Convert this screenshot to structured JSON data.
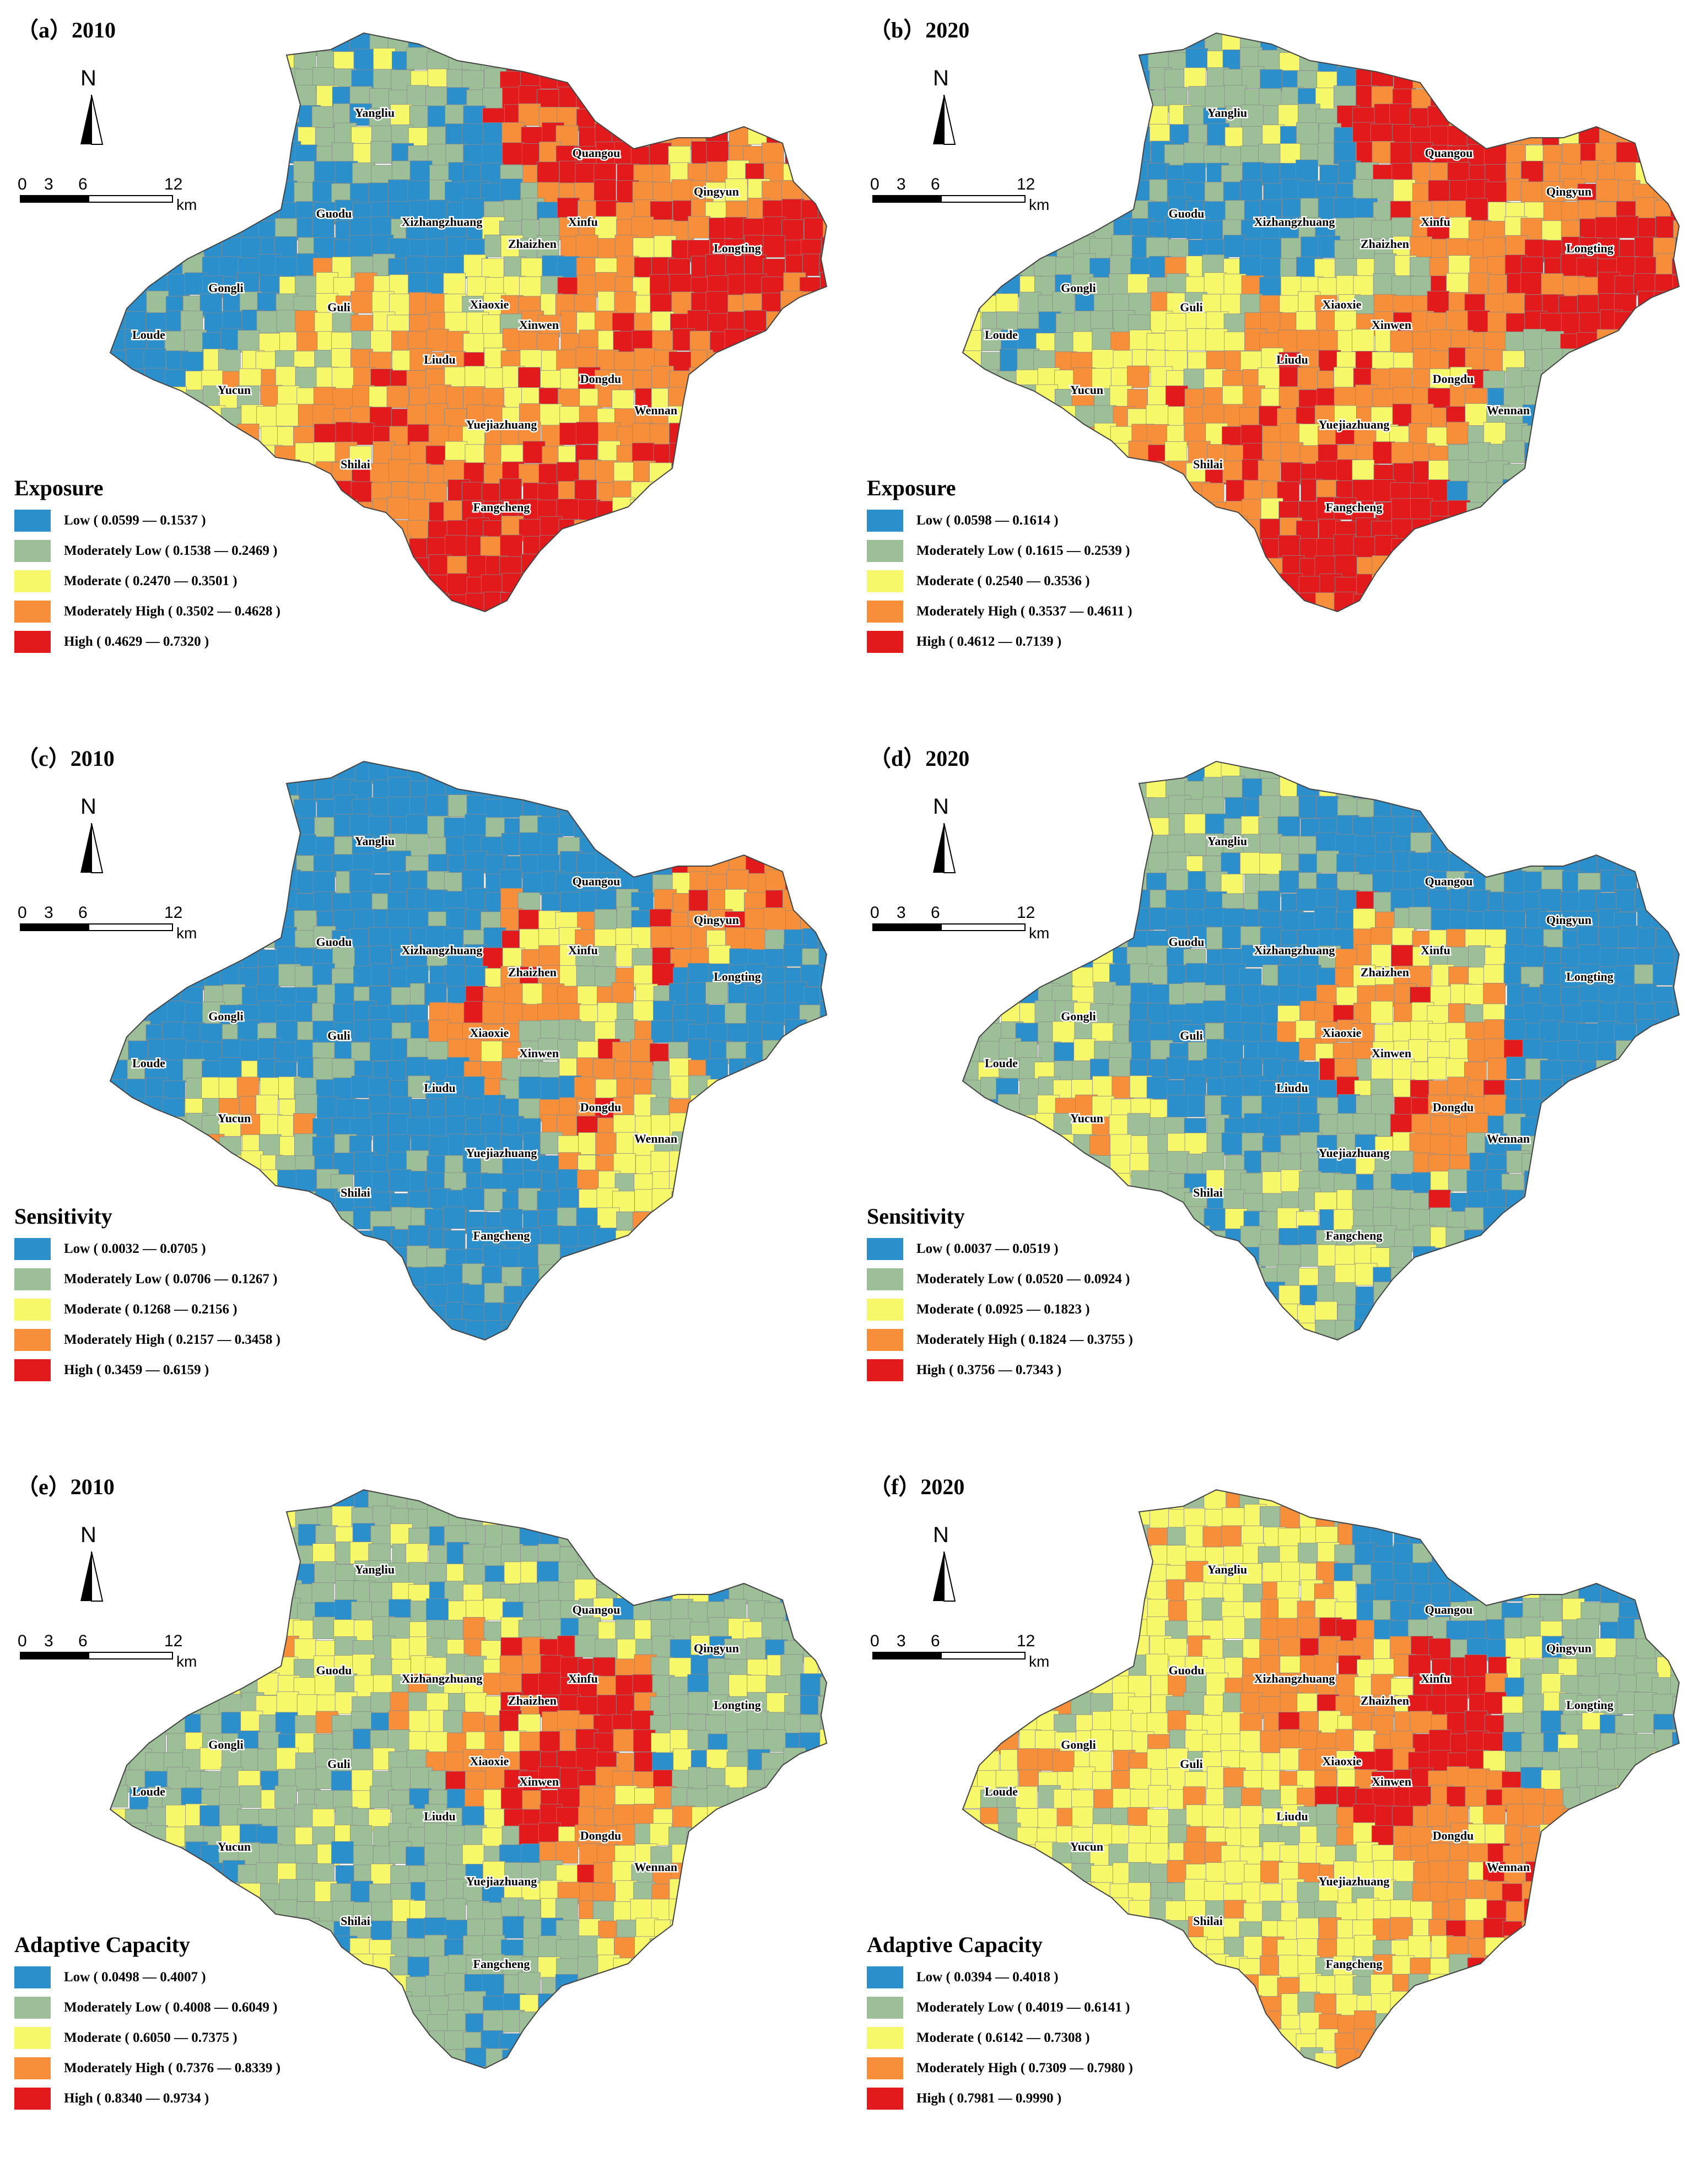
{
  "colors": {
    "low": "#2b8fcb",
    "moderately_low": "#9cbf98",
    "moderate": "#f7f76a",
    "moderately_high": "#f78f3a",
    "high": "#e31a1c",
    "boundary": "#444444"
  },
  "scale": {
    "labels": [
      "0",
      "3",
      "6",
      "12"
    ],
    "unit": "km"
  },
  "north_label": "N",
  "towns": [
    "Yangliu",
    "Quangou",
    "Qingyun",
    "Guodu",
    "Xizhangzhuang",
    "Xinfu",
    "Zhaizhen",
    "Longting",
    "Gongli",
    "Loude",
    "Guli",
    "Xiaoxie",
    "Xinwen",
    "Liudu",
    "Dongdu",
    "Yucun",
    "Wennan",
    "Yuejiazhuang",
    "Shilai",
    "Fangcheng"
  ],
  "panels": [
    {
      "title": "（a）2010",
      "legend_title": "Exposure",
      "legend": [
        "Low ( 0.0599 — 0.1537 )",
        "Moderately Low ( 0.1538 — 0.2469 )",
        "Moderate ( 0.2470 — 0.3501 )",
        "Moderately High ( 0.3502 — 0.4628 )",
        "High ( 0.4629 — 0.7320 )"
      ]
    },
    {
      "title": "（b）2020",
      "legend_title": "Exposure",
      "legend": [
        "Low ( 0.0598 — 0.1614 )",
        "Moderately Low ( 0.1615 — 0.2539 )",
        "Moderate ( 0.2540 — 0.3536 )",
        "Moderately High ( 0.3537 — 0.4611 )",
        "High ( 0.4612 — 0.7139 )"
      ]
    },
    {
      "title": "（c）2010",
      "legend_title": "Sensitivity",
      "legend": [
        "Low ( 0.0032 — 0.0705 )",
        "Moderately Low ( 0.0706 — 0.1267 )",
        "Moderate ( 0.1268 — 0.2156 )",
        "Moderately High ( 0.2157 — 0.3458 )",
        "High ( 0.3459 — 0.6159 )"
      ]
    },
    {
      "title": "（d）2020",
      "legend_title": "Sensitivity",
      "legend": [
        "Low ( 0.0037 — 0.0519 )",
        "Moderately Low ( 0.0520 — 0.0924 )",
        "Moderate ( 0.0925 — 0.1823 )",
        "Moderately High ( 0.1824 — 0.3755 )",
        "High ( 0.3756 — 0.7343 )"
      ]
    },
    {
      "title": "（e）2010",
      "legend_title": "Adaptive Capacity",
      "legend": [
        "Low ( 0.0498 — 0.4007 )",
        "Moderately Low ( 0.4008 — 0.6049 )",
        "Moderate ( 0.6050 — 0.7375 )",
        "Moderately High ( 0.7376 — 0.8339 )",
        "High ( 0.8340 — 0.9734 )"
      ]
    },
    {
      "title": "（f）2020",
      "legend_title": "Adaptive Capacity",
      "legend": [
        "Low ( 0.0394 — 0.4018 )",
        "Moderately Low ( 0.4019 — 0.6141 )",
        "Moderate ( 0.6142 — 0.7308 )",
        "Moderately High ( 0.7309 — 0.7980 )",
        "High ( 0.7981 — 0.9990 )"
      ]
    }
  ],
  "town_classes": [
    [
      "moderately_low",
      "high",
      "moderately_high",
      "low",
      "low",
      "moderately_high",
      "moderately_low",
      "high",
      "low",
      "low",
      "moderate",
      "moderate",
      "moderately_high",
      "moderately_high",
      "moderately_high",
      "moderate",
      "moderately_high",
      "moderately_high",
      "moderately_high",
      "high"
    ],
    [
      "moderately_low",
      "high",
      "moderately_high",
      "low",
      "low",
      "moderately_high",
      "moderately_low",
      "high",
      "moderately_low",
      "moderately_low",
      "moderate",
      "moderate",
      "moderately_high",
      "moderately_high",
      "moderately_high",
      "moderate",
      "moderately_low",
      "moderately_high",
      "moderately_high",
      "high"
    ],
    [
      "low",
      "low",
      "moderately_high",
      "low",
      "low",
      "moderate",
      "moderately_high",
      "low",
      "low",
      "low",
      "low",
      "moderately_high",
      "moderately_low",
      "low",
      "moderately_high",
      "moderate",
      "moderate",
      "low",
      "low",
      "low"
    ],
    [
      "moderately_low",
      "low",
      "low",
      "low",
      "low",
      "moderate",
      "moderately_high",
      "low",
      "moderately_low",
      "moderately_low",
      "low",
      "moderately_high",
      "moderate",
      "low",
      "moderately_high",
      "moderate",
      "low",
      "moderately_low",
      "moderately_low",
      "moderately_low"
    ],
    [
      "moderately_low",
      "moderately_low",
      "moderately_low",
      "moderate",
      "moderate",
      "high",
      "moderately_high",
      "moderately_low",
      "moderately_low",
      "moderately_low",
      "moderately_low",
      "moderately_high",
      "high",
      "moderately_low",
      "moderately_high",
      "moderately_low",
      "moderate",
      "moderately_low",
      "moderately_low",
      "moderately_low"
    ],
    [
      "moderate",
      "low",
      "moderately_low",
      "moderate",
      "moderately_high",
      "high",
      "moderately_high",
      "moderately_low",
      "moderate",
      "moderate",
      "moderate",
      "moderately_high",
      "high",
      "moderate",
      "moderately_high",
      "moderate",
      "moderately_high",
      "moderate",
      "moderate",
      "moderate"
    ]
  ]
}
